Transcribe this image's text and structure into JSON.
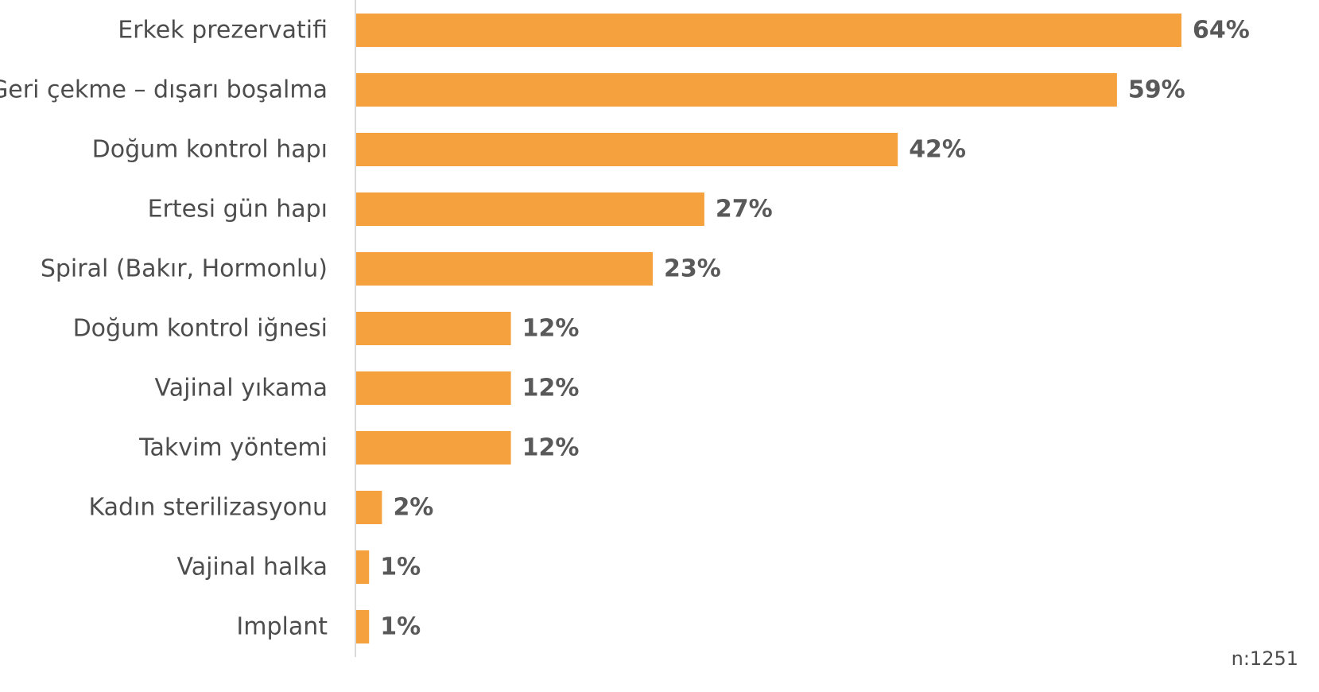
{
  "chart_data": {
    "type": "bar",
    "orientation": "horizontal",
    "categories": [
      "Erkek prezervatifi",
      "Geri çekme – dışarı boşalma",
      "Doğum kontrol hapı",
      "Ertesi gün hapı",
      "Spiral (Bakır, Hormonlu)",
      "Doğum kontrol iğnesi",
      "Vajinal yıkama",
      "Takvim yöntemi",
      "Kadın sterilizasyonu",
      "Vajinal halka",
      "Implant"
    ],
    "values": [
      64,
      59,
      42,
      27,
      23,
      12,
      12,
      12,
      2,
      1,
      1
    ],
    "value_labels": [
      "64%",
      "59%",
      "42%",
      "27%",
      "23%",
      "12%",
      "12%",
      "12%",
      "2%",
      "1%",
      "1%"
    ],
    "xlim": [
      0,
      64
    ],
    "grid": false,
    "legend": "none",
    "bar_color": "#f5a23e",
    "axis_color": "#d9d9d9"
  },
  "note": "n:1251"
}
